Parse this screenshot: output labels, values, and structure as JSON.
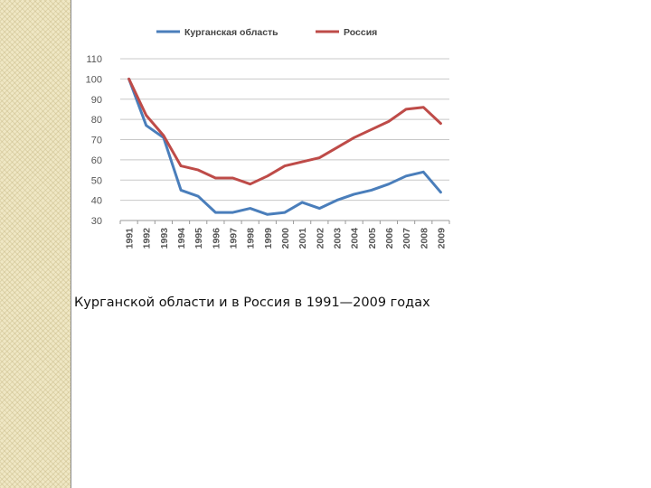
{
  "caption": "Курганской области и в Россия в 1991—2009 годах",
  "chart_data": {
    "type": "line",
    "title": "",
    "xlabel": "",
    "ylabel": "",
    "x": [
      "1991",
      "1992",
      "1993",
      "1994",
      "1995",
      "1996",
      "1997",
      "1998",
      "1999",
      "2000",
      "2001",
      "2002",
      "2003",
      "2004",
      "2005",
      "2006",
      "2007",
      "2008",
      "2009"
    ],
    "ylim": [
      30,
      110
    ],
    "yticks": [
      30,
      40,
      50,
      60,
      70,
      80,
      90,
      100,
      110
    ],
    "grid": true,
    "legend": "top",
    "series": [
      {
        "name": "Курганская область",
        "color": "#4a7ebb",
        "values": [
          100,
          77,
          71,
          45,
          42,
          34,
          34,
          36,
          33,
          34,
          39,
          36,
          40,
          43,
          45,
          48,
          52,
          54,
          44
        ]
      },
      {
        "name": "Россия",
        "color": "#be4b48",
        "values": [
          100,
          82,
          72,
          57,
          55,
          51,
          51,
          48,
          52,
          57,
          59,
          61,
          66,
          71,
          75,
          79,
          85,
          86,
          78
        ]
      }
    ]
  }
}
